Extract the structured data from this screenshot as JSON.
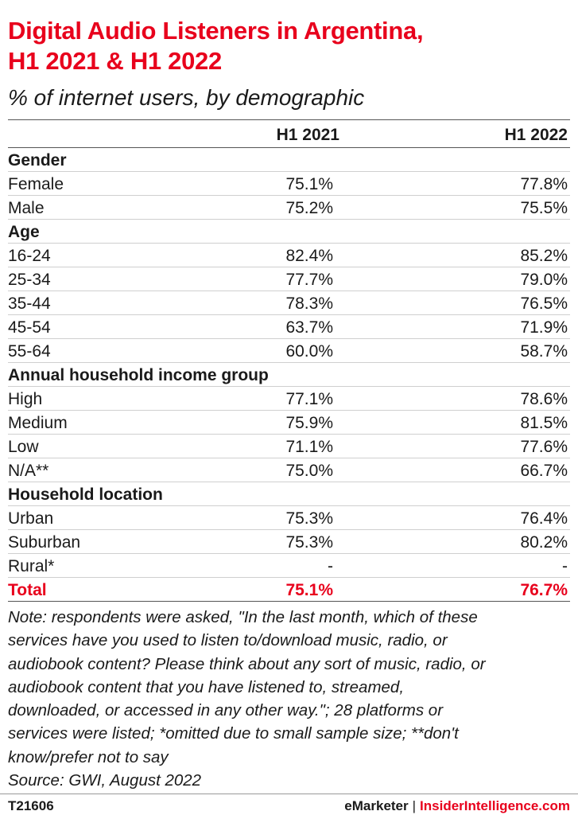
{
  "chart_data": {
    "type": "table",
    "title": "Digital Audio Listeners in Argentina, H1 2021 & H1 2022",
    "subtitle": "% of internet users, by demographic",
    "columns": [
      "H1 2021",
      "H1 2022"
    ],
    "rows": [
      {
        "label": "Gender",
        "group": true,
        "v1": "",
        "v2": ""
      },
      {
        "label": "Female",
        "group": false,
        "v1": "75.1%",
        "v2": "77.8%"
      },
      {
        "label": "Male",
        "group": false,
        "v1": "75.2%",
        "v2": "75.5%"
      },
      {
        "label": "Age",
        "group": true,
        "v1": "",
        "v2": ""
      },
      {
        "label": "16-24",
        "group": false,
        "v1": "82.4%",
        "v2": "85.2%"
      },
      {
        "label": "25-34",
        "group": false,
        "v1": "77.7%",
        "v2": "79.0%"
      },
      {
        "label": "35-44",
        "group": false,
        "v1": "78.3%",
        "v2": "76.5%"
      },
      {
        "label": "45-54",
        "group": false,
        "v1": "63.7%",
        "v2": "71.9%"
      },
      {
        "label": "55-64",
        "group": false,
        "v1": "60.0%",
        "v2": "58.7%"
      },
      {
        "label": "Annual household income group",
        "group": true,
        "v1": "",
        "v2": ""
      },
      {
        "label": "High",
        "group": false,
        "v1": "77.1%",
        "v2": "78.6%"
      },
      {
        "label": "Medium",
        "group": false,
        "v1": "75.9%",
        "v2": "81.5%"
      },
      {
        "label": "Low",
        "group": false,
        "v1": "71.1%",
        "v2": "77.6%"
      },
      {
        "label": "N/A**",
        "group": false,
        "v1": "75.0%",
        "v2": "66.7%"
      },
      {
        "label": "Household location",
        "group": true,
        "v1": "",
        "v2": ""
      },
      {
        "label": "Urban",
        "group": false,
        "v1": "75.3%",
        "v2": "76.4%"
      },
      {
        "label": "Suburban",
        "group": false,
        "v1": "75.3%",
        "v2": "80.2%"
      },
      {
        "label": "Rural*",
        "group": false,
        "v1": "-",
        "v2": "-"
      }
    ],
    "total": {
      "label": "Total",
      "v1": "75.1%",
      "v2": "76.7%"
    }
  },
  "title_line1": "Digital Audio Listeners in Argentina,",
  "title_line2": "H1 2021 & H1 2022",
  "subtitle": "% of internet users, by demographic",
  "note_lines": [
    "Note: respondents were asked, \"In the last month, which of these",
    "services have you used to listen to/download music, radio, or",
    "audiobook content? Please think about any sort of music, radio, or",
    "audiobook content that you have listened to, streamed,",
    "downloaded, or accessed in any other way.\"; 28 platforms or",
    "services were listed; *omitted due to small sample size; **don't",
    "know/prefer not to say"
  ],
  "source": "Source: GWI, August 2022",
  "footer": {
    "chart_id": "T21606",
    "brand1": "eMarketer",
    "separator": "|",
    "brand2": "InsiderIntelligence.com"
  },
  "colors": {
    "accent": "#e8001c",
    "text": "#1a1a1a"
  }
}
